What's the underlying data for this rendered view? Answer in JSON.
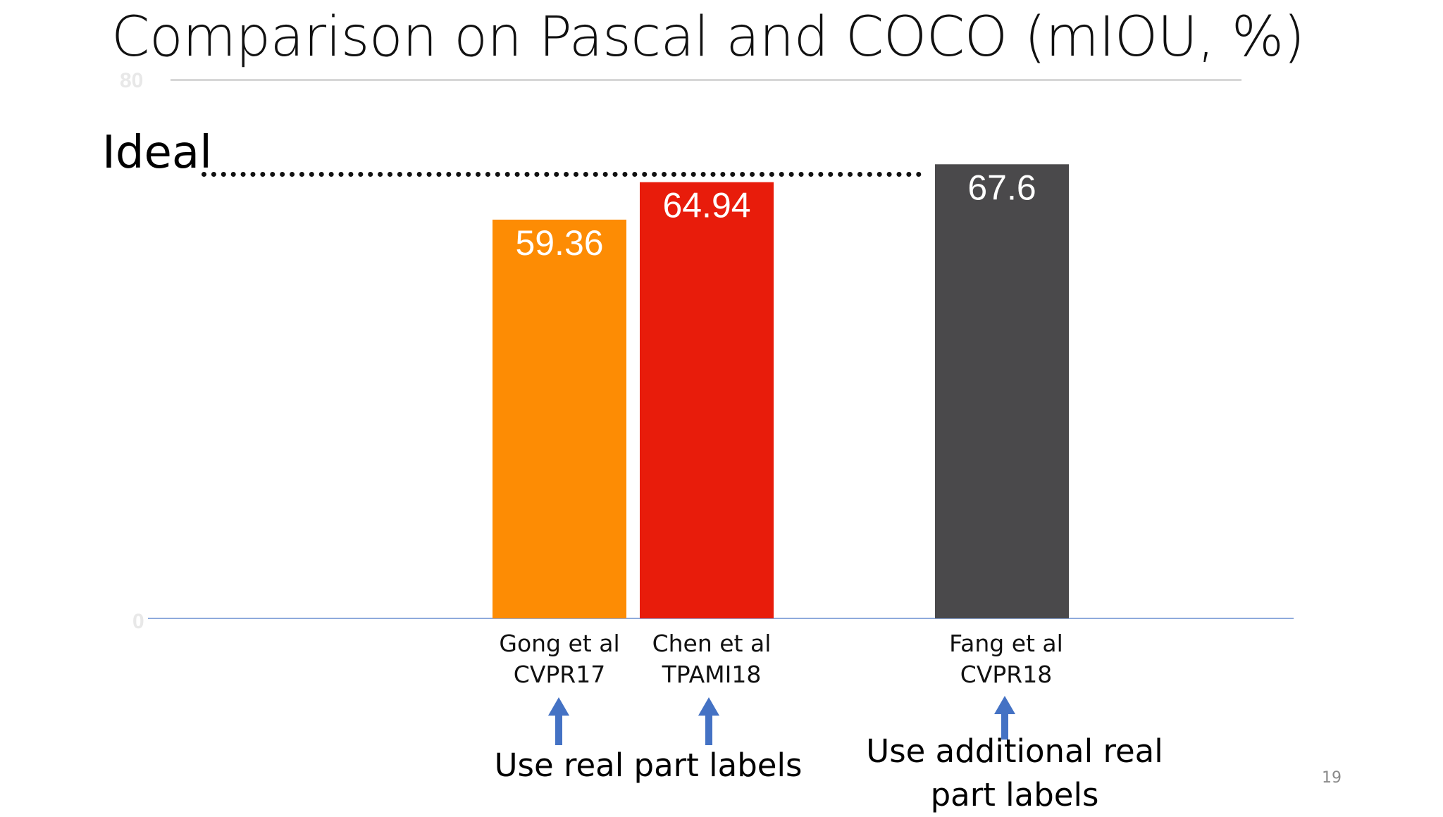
{
  "slide": {
    "title": "Comparison on Pascal and COCO (mIOU, %)",
    "ideal_label": "Ideal",
    "page_number": "19",
    "notes": {
      "left": "Use real part labels",
      "right_line1": "Use additional real",
      "right_line2": "part labels"
    }
  },
  "chart_data": {
    "type": "bar",
    "title": "Comparison on Pascal and COCO (mIOU, %)",
    "ylim": [
      0,
      80
    ],
    "y_ticks": [
      "0",
      "80"
    ],
    "categories": [
      {
        "line1": "Gong et al",
        "line2": "CVPR17"
      },
      {
        "line1": "Chen et al",
        "line2": "TPAMI18"
      },
      {
        "line1": "Fang et al",
        "line2": "CVPR18"
      }
    ],
    "values": [
      59.36,
      64.94,
      67.6
    ],
    "value_labels": [
      "59.36",
      "64.94",
      "67.6"
    ],
    "colors": [
      "#fd8c04",
      "#e81c0b",
      "#4a494b"
    ],
    "ideal_line": {
      "label": "Ideal"
    },
    "grid": false,
    "legend": "none"
  }
}
